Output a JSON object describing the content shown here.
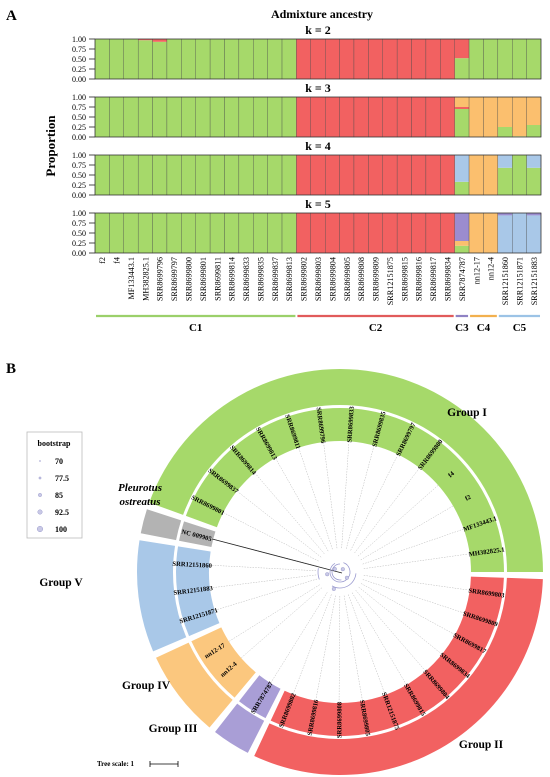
{
  "panel_a": {
    "label": "A",
    "title": "Admixture ancestry",
    "ylabel": "Proportion",
    "yticks": [
      "1.00",
      "0.75",
      "0.50",
      "0.25",
      "0.00"
    ],
    "samples": [
      "f2",
      "f4",
      "MF133443.1",
      "MH382825.1",
      "SRR8699796",
      "SRR8699797",
      "SRR8699800",
      "SRR8699801",
      "SRR8699811",
      "SRR8699814",
      "SRR8699833",
      "SRR8699835",
      "SRR8699837",
      "SRR8699813",
      "SRR8699802",
      "SRR8699803",
      "SRR8699804",
      "SRR8699805",
      "SRR8699808",
      "SRR8699809",
      "SRR12151875",
      "SRR8699815",
      "SRR8699816",
      "SRR8699817",
      "SRR8699834",
      "SRR7874787",
      "nn12-17",
      "nn12-4",
      "SRR12151860",
      "SRR12151871",
      "SRR12151883"
    ],
    "clusters": [
      {
        "label": "C1",
        "color": "#9bd06a",
        "from": 0,
        "to": 13
      },
      {
        "label": "C2",
        "color": "#e15b5b",
        "from": 14,
        "to": 24
      },
      {
        "label": "C3",
        "color": "#8f82c4",
        "from": 25,
        "to": 25
      },
      {
        "label": "C4",
        "color": "#f2b04e",
        "from": 26,
        "to": 27
      },
      {
        "label": "C5",
        "color": "#9cc3e6",
        "from": 28,
        "to": 30
      }
    ],
    "colors": {
      "green": "#a6d96a",
      "red": "#f26161",
      "orange": "#fbbf6e",
      "blue": "#a9c8e8",
      "purple": "#9b8ccf",
      "brown": "#b0694d"
    }
  },
  "chart_data": [
    {
      "type": "bar",
      "title": "k = 2",
      "ylim": [
        0,
        1
      ],
      "series": [
        {
          "color": "#a6d96a",
          "values": [
            1,
            1,
            1,
            0.97,
            0.93,
            1,
            1,
            1,
            1,
            1,
            1,
            1,
            1,
            1,
            0,
            0,
            0,
            0,
            0,
            0,
            0,
            0,
            0,
            0,
            0,
            0.52,
            1,
            1,
            1,
            1,
            1
          ]
        },
        {
          "color": "#f26161",
          "values": [
            0,
            0,
            0,
            0.03,
            0.07,
            0,
            0,
            0,
            0,
            0,
            0,
            0,
            0,
            0,
            1,
            1,
            1,
            1,
            1,
            1,
            1,
            1,
            1,
            1,
            1,
            0.48,
            0,
            0,
            0,
            0,
            0
          ]
        }
      ]
    },
    {
      "type": "bar",
      "title": "k = 3",
      "ylim": [
        0,
        1
      ],
      "series": [
        {
          "color": "#a6d96a",
          "values": [
            1,
            1,
            1,
            1,
            1,
            1,
            1,
            1,
            1,
            1,
            1,
            1,
            1,
            1,
            0,
            0,
            0,
            0,
            0,
            0,
            0,
            0,
            0,
            0,
            0,
            0.7,
            0,
            0,
            0.25,
            0.02,
            0.3
          ]
        },
        {
          "color": "#f26161",
          "values": [
            0,
            0,
            0,
            0,
            0,
            0,
            0,
            0,
            0,
            0,
            0,
            0,
            0,
            0,
            1,
            1,
            1,
            1,
            1,
            1,
            1,
            1,
            1,
            1,
            1,
            0.05,
            0,
            0,
            0,
            0,
            0
          ]
        },
        {
          "color": "#fbbf6e",
          "values": [
            0,
            0,
            0,
            0,
            0,
            0,
            0,
            0,
            0,
            0,
            0,
            0,
            0,
            0,
            0,
            0,
            0,
            0,
            0,
            0,
            0,
            0,
            0,
            0,
            0,
            0.25,
            1,
            1,
            0.75,
            0.98,
            0.7
          ]
        }
      ]
    },
    {
      "type": "bar",
      "title": "k = 4",
      "ylim": [
        0,
        1
      ],
      "series": [
        {
          "color": "#a6d96a",
          "values": [
            1,
            1,
            1,
            1,
            1,
            1,
            1,
            1,
            1,
            1,
            1,
            1,
            1,
            1,
            0,
            0,
            0,
            0,
            0,
            0,
            0,
            0,
            0,
            0,
            0,
            0.33,
            0,
            0,
            0.68,
            1,
            0.68
          ]
        },
        {
          "color": "#f26161",
          "values": [
            0,
            0,
            0,
            0,
            0,
            0,
            0,
            0,
            0,
            0,
            0,
            0,
            0,
            0,
            1,
            1,
            1,
            1,
            1,
            1,
            1,
            1,
            1,
            1,
            1,
            0,
            0,
            0,
            0,
            0,
            0
          ]
        },
        {
          "color": "#fbbf6e",
          "values": [
            0,
            0,
            0,
            0,
            0,
            0,
            0,
            0,
            0,
            0,
            0,
            0,
            0,
            0,
            0,
            0,
            0,
            0,
            0,
            0,
            0,
            0,
            0,
            0,
            0,
            0,
            1,
            1,
            0,
            0,
            0
          ]
        },
        {
          "color": "#a9c8e8",
          "values": [
            0,
            0,
            0,
            0,
            0,
            0,
            0,
            0,
            0,
            0,
            0,
            0,
            0,
            0,
            0,
            0,
            0,
            0,
            0,
            0,
            0,
            0,
            0,
            0,
            0,
            0.67,
            0,
            0,
            0.32,
            0,
            0.32
          ]
        }
      ]
    },
    {
      "type": "bar",
      "title": "k = 5",
      "ylim": [
        0,
        1
      ],
      "series": [
        {
          "color": "#a6d96a",
          "values": [
            1,
            1,
            1,
            1,
            1,
            1,
            1,
            1,
            1,
            1,
            1,
            1,
            1,
            1,
            0,
            0,
            0,
            0,
            0,
            0,
            0,
            0,
            0,
            0,
            0,
            0.18,
            0,
            0,
            0,
            0,
            0
          ]
        },
        {
          "color": "#f26161",
          "values": [
            0,
            0,
            0,
            0,
            0,
            0,
            0,
            0,
            0,
            0,
            0,
            0,
            0,
            0,
            1,
            1,
            1,
            1,
            1,
            1,
            1,
            1,
            1,
            1,
            1,
            0,
            0,
            0,
            0,
            0,
            0
          ]
        },
        {
          "color": "#fbbf6e",
          "values": [
            0,
            0,
            0,
            0,
            0,
            0,
            0,
            0,
            0,
            0,
            0,
            0,
            0,
            0,
            0,
            0,
            0,
            0,
            0,
            0,
            0,
            0,
            0,
            0,
            0,
            0.12,
            1,
            1,
            0,
            0,
            0
          ]
        },
        {
          "color": "#a9c8e8",
          "values": [
            0,
            0,
            0,
            0,
            0,
            0,
            0,
            0,
            0,
            0,
            0,
            0,
            0,
            0,
            0,
            0,
            0,
            0,
            0,
            0,
            0,
            0,
            0,
            0,
            0,
            0,
            0,
            0,
            0.94,
            1,
            0.94
          ]
        },
        {
          "color": "#9b8ccf",
          "values": [
            0,
            0,
            0,
            0,
            0,
            0,
            0,
            0,
            0,
            0,
            0,
            0,
            0,
            0,
            0,
            0,
            0,
            0,
            0,
            0,
            0,
            0,
            0,
            0,
            0,
            0.7,
            0,
            0,
            0.06,
            0,
            0.06
          ]
        }
      ]
    }
  ],
  "panel_b": {
    "label": "B",
    "legend": {
      "title": "bootstrap",
      "items": [
        "70",
        "77.5",
        "85",
        "92.5",
        "100"
      ]
    },
    "tree_scale": "Tree scale: 1",
    "outgroup_label": [
      "Pleurotus",
      "ostreatus"
    ],
    "leaves": [
      "SRR8699833",
      "SRR8699835",
      "SRR8699797",
      "SRR8699800",
      "f4",
      "f2",
      "MF133443.1",
      "MH382825.1",
      "SRR8699803",
      "SRR8699809",
      "SRR8699817",
      "SRR8699834",
      "SRR8699804",
      "SRR8699815",
      "SRR12151875",
      "SRR8699805",
      "SRR8699808",
      "SRR8699816",
      "SRR8699802",
      "SRR7874787",
      "nn12-4",
      "nn12-17",
      "SRR12151871",
      "SRR12151883",
      "SRR12151860",
      "NC 009905",
      "SRR8699801",
      "SRR8699837",
      "SRR8699814",
      "SRR8699813",
      "SRR8699811",
      "SRR8699796"
    ],
    "groups": [
      {
        "label": "Group I",
        "color": "#a6d96a"
      },
      {
        "label": "Group II",
        "color": "#f26161"
      },
      {
        "label": "Group III",
        "color": "#a99ed6"
      },
      {
        "label": "Group IV",
        "color": "#fbc77e"
      },
      {
        "label": "Group V",
        "color": "#a9c8e8"
      },
      {
        "label": "",
        "color": "#b3b3b3"
      }
    ]
  }
}
